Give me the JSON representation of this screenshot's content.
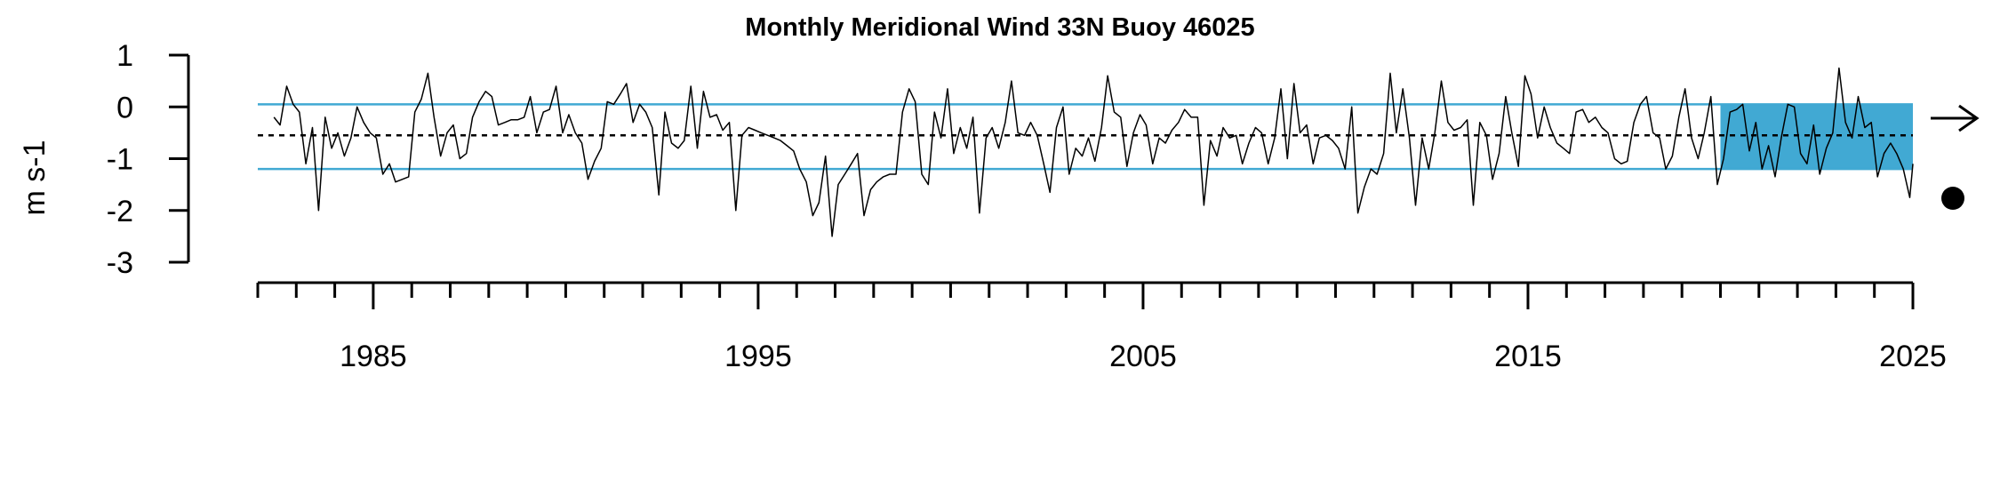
{
  "chart_data": {
    "type": "line",
    "title": "Monthly Meridional Wind 33N Buoy 46025",
    "ylabel": "m s-1",
    "xlabel": "",
    "ylim": [
      -3,
      1
    ],
    "xlim": [
      1982,
      2025
    ],
    "y_ticks": [
      1,
      0,
      -1,
      -2,
      -3
    ],
    "y_tick_labels": [
      "1",
      "0",
      "-1",
      "-2",
      "-3"
    ],
    "x_major_ticks": [
      1985,
      1995,
      2005,
      2015,
      2025
    ],
    "x_tick_labels": [
      "1985",
      "1995",
      "2005",
      "2015",
      "2025"
    ],
    "x_minor_tick_start": 1982,
    "x_minor_tick_end": 2025,
    "mean": -0.55,
    "upper_band": 0.05,
    "lower_band": -1.2,
    "highlight_period": [
      2020,
      2025
    ],
    "trend_indicator": "right-arrow-icon",
    "recent_mean_indicator": "filled-circle-icon",
    "colors": {
      "band": "#41a9d3",
      "line": "#000000",
      "highlight": "#41a9d3"
    },
    "series": [
      {
        "values": [
          [
            1982.42,
            -0.2
          ],
          [
            1982.58,
            -0.35
          ],
          [
            1982.75,
            0.4
          ],
          [
            1982.92,
            0.05
          ],
          [
            1983.08,
            -0.1
          ],
          [
            1983.25,
            -1.1
          ],
          [
            1983.42,
            -0.4
          ],
          [
            1983.58,
            -2.0
          ],
          [
            1983.75,
            -0.2
          ],
          [
            1983.92,
            -0.8
          ],
          [
            1984.08,
            -0.5
          ],
          [
            1984.25,
            -0.95
          ],
          [
            1984.42,
            -0.6
          ],
          [
            1984.58,
            0.0
          ],
          [
            1984.75,
            -0.3
          ],
          [
            1984.92,
            -0.5
          ],
          [
            1985.08,
            -0.6
          ],
          [
            1985.25,
            -1.3
          ],
          [
            1985.42,
            -1.1
          ],
          [
            1985.58,
            -1.45
          ],
          [
            1985.75,
            -1.4
          ],
          [
            1985.92,
            -1.35
          ],
          [
            1986.08,
            -0.1
          ],
          [
            1986.25,
            0.15
          ],
          [
            1986.42,
            0.65
          ],
          [
            1986.58,
            -0.2
          ],
          [
            1986.75,
            -0.95
          ],
          [
            1986.92,
            -0.5
          ],
          [
            1987.08,
            -0.35
          ],
          [
            1987.25,
            -1.0
          ],
          [
            1987.42,
            -0.9
          ],
          [
            1987.58,
            -0.2
          ],
          [
            1987.75,
            0.1
          ],
          [
            1987.92,
            0.3
          ],
          [
            1988.08,
            0.2
          ],
          [
            1988.25,
            -0.35
          ],
          [
            1988.42,
            -0.3
          ],
          [
            1988.58,
            -0.25
          ],
          [
            1988.75,
            -0.25
          ],
          [
            1988.92,
            -0.2
          ],
          [
            1989.08,
            0.2
          ],
          [
            1989.25,
            -0.5
          ],
          [
            1989.42,
            -0.1
          ],
          [
            1989.58,
            -0.05
          ],
          [
            1989.75,
            0.4
          ],
          [
            1989.92,
            -0.5
          ],
          [
            1990.08,
            -0.15
          ],
          [
            1990.25,
            -0.5
          ],
          [
            1990.42,
            -0.7
          ],
          [
            1990.58,
            -1.4
          ],
          [
            1990.75,
            -1.05
          ],
          [
            1990.92,
            -0.8
          ],
          [
            1991.08,
            0.1
          ],
          [
            1991.25,
            0.05
          ],
          [
            1991.42,
            0.25
          ],
          [
            1991.58,
            0.45
          ],
          [
            1991.75,
            -0.3
          ],
          [
            1991.92,
            0.05
          ],
          [
            1992.08,
            -0.1
          ],
          [
            1992.25,
            -0.4
          ],
          [
            1992.42,
            -1.7
          ],
          [
            1992.58,
            -0.1
          ],
          [
            1992.75,
            -0.7
          ],
          [
            1992.92,
            -0.8
          ],
          [
            1993.08,
            -0.65
          ],
          [
            1993.25,
            0.4
          ],
          [
            1993.42,
            -0.8
          ],
          [
            1993.58,
            0.3
          ],
          [
            1993.75,
            -0.2
          ],
          [
            1993.92,
            -0.15
          ],
          [
            1994.08,
            -0.45
          ],
          [
            1994.25,
            -0.3
          ],
          [
            1994.42,
            -2.0
          ],
          [
            1994.58,
            -0.55
          ],
          [
            1994.75,
            -0.4
          ],
          [
            1994.92,
            -0.45
          ],
          [
            1995.08,
            -0.5
          ],
          [
            1995.25,
            -0.55
          ],
          [
            1995.42,
            -0.6
          ],
          [
            1995.58,
            -0.65
          ],
          [
            1995.75,
            -0.75
          ],
          [
            1995.92,
            -0.85
          ],
          [
            1996.08,
            -1.2
          ],
          [
            1996.25,
            -1.45
          ],
          [
            1996.42,
            -2.1
          ],
          [
            1996.58,
            -1.85
          ],
          [
            1996.75,
            -0.95
          ],
          [
            1996.92,
            -2.5
          ],
          [
            1997.08,
            -1.5
          ],
          [
            1997.25,
            -1.3
          ],
          [
            1997.42,
            -1.1
          ],
          [
            1997.58,
            -0.9
          ],
          [
            1997.75,
            -2.1
          ],
          [
            1997.92,
            -1.6
          ],
          [
            1998.08,
            -1.45
          ],
          [
            1998.25,
            -1.35
          ],
          [
            1998.42,
            -1.3
          ],
          [
            1998.58,
            -1.3
          ],
          [
            1998.75,
            -0.1
          ],
          [
            1998.92,
            0.35
          ],
          [
            1999.08,
            0.1
          ],
          [
            1999.25,
            -1.3
          ],
          [
            1999.42,
            -1.5
          ],
          [
            1999.58,
            -0.1
          ],
          [
            1999.75,
            -0.6
          ],
          [
            1999.92,
            0.35
          ],
          [
            2000.08,
            -0.9
          ],
          [
            2000.25,
            -0.4
          ],
          [
            2000.42,
            -0.8
          ],
          [
            2000.58,
            -0.2
          ],
          [
            2000.75,
            -2.05
          ],
          [
            2000.92,
            -0.6
          ],
          [
            2001.08,
            -0.4
          ],
          [
            2001.25,
            -0.8
          ],
          [
            2001.42,
            -0.3
          ],
          [
            2001.58,
            0.5
          ],
          [
            2001.75,
            -0.5
          ],
          [
            2001.92,
            -0.55
          ],
          [
            2002.08,
            -0.3
          ],
          [
            2002.25,
            -0.55
          ],
          [
            2002.42,
            -1.1
          ],
          [
            2002.58,
            -1.65
          ],
          [
            2002.75,
            -0.4
          ],
          [
            2002.92,
            0.0
          ],
          [
            2003.08,
            -1.3
          ],
          [
            2003.25,
            -0.8
          ],
          [
            2003.42,
            -0.95
          ],
          [
            2003.58,
            -0.6
          ],
          [
            2003.75,
            -1.05
          ],
          [
            2003.92,
            -0.4
          ],
          [
            2004.08,
            0.6
          ],
          [
            2004.25,
            -0.1
          ],
          [
            2004.42,
            -0.2
          ],
          [
            2004.58,
            -1.15
          ],
          [
            2004.75,
            -0.5
          ],
          [
            2004.92,
            -0.15
          ],
          [
            2005.08,
            -0.35
          ],
          [
            2005.25,
            -1.1
          ],
          [
            2005.42,
            -0.6
          ],
          [
            2005.58,
            -0.7
          ],
          [
            2005.75,
            -0.45
          ],
          [
            2005.92,
            -0.3
          ],
          [
            2006.08,
            -0.05
          ],
          [
            2006.25,
            -0.2
          ],
          [
            2006.42,
            -0.2
          ],
          [
            2006.58,
            -1.9
          ],
          [
            2006.75,
            -0.65
          ],
          [
            2006.92,
            -0.95
          ],
          [
            2007.08,
            -0.4
          ],
          [
            2007.25,
            -0.6
          ],
          [
            2007.42,
            -0.55
          ],
          [
            2007.58,
            -1.1
          ],
          [
            2007.75,
            -0.7
          ],
          [
            2007.92,
            -0.4
          ],
          [
            2008.08,
            -0.5
          ],
          [
            2008.25,
            -1.1
          ],
          [
            2008.42,
            -0.6
          ],
          [
            2008.58,
            0.35
          ],
          [
            2008.75,
            -1.0
          ],
          [
            2008.92,
            0.45
          ],
          [
            2009.08,
            -0.5
          ],
          [
            2009.25,
            -0.35
          ],
          [
            2009.42,
            -1.1
          ],
          [
            2009.58,
            -0.6
          ],
          [
            2009.75,
            -0.55
          ],
          [
            2009.92,
            -0.65
          ],
          [
            2010.08,
            -0.8
          ],
          [
            2010.25,
            -1.2
          ],
          [
            2010.42,
            0.0
          ],
          [
            2010.58,
            -2.05
          ],
          [
            2010.75,
            -1.55
          ],
          [
            2010.92,
            -1.2
          ],
          [
            2011.08,
            -1.3
          ],
          [
            2011.25,
            -0.9
          ],
          [
            2011.42,
            0.65
          ],
          [
            2011.58,
            -0.5
          ],
          [
            2011.75,
            0.35
          ],
          [
            2011.92,
            -0.6
          ],
          [
            2012.08,
            -1.9
          ],
          [
            2012.25,
            -0.6
          ],
          [
            2012.42,
            -1.2
          ],
          [
            2012.58,
            -0.5
          ],
          [
            2012.75,
            0.5
          ],
          [
            2012.92,
            -0.3
          ],
          [
            2013.08,
            -0.45
          ],
          [
            2013.25,
            -0.4
          ],
          [
            2013.42,
            -0.25
          ],
          [
            2013.58,
            -1.9
          ],
          [
            2013.75,
            -0.3
          ],
          [
            2013.92,
            -0.55
          ],
          [
            2014.08,
            -1.4
          ],
          [
            2014.25,
            -0.9
          ],
          [
            2014.42,
            0.2
          ],
          [
            2014.58,
            -0.5
          ],
          [
            2014.75,
            -1.15
          ],
          [
            2014.92,
            0.6
          ],
          [
            2015.08,
            0.25
          ],
          [
            2015.25,
            -0.6
          ],
          [
            2015.42,
            0.0
          ],
          [
            2015.58,
            -0.4
          ],
          [
            2015.75,
            -0.7
          ],
          [
            2015.92,
            -0.8
          ],
          [
            2016.08,
            -0.9
          ],
          [
            2016.25,
            -0.1
          ],
          [
            2016.42,
            -0.05
          ],
          [
            2016.58,
            -0.3
          ],
          [
            2016.75,
            -0.2
          ],
          [
            2016.92,
            -0.4
          ],
          [
            2017.08,
            -0.5
          ],
          [
            2017.25,
            -1.0
          ],
          [
            2017.42,
            -1.1
          ],
          [
            2017.58,
            -1.05
          ],
          [
            2017.75,
            -0.3
          ],
          [
            2017.92,
            0.05
          ],
          [
            2018.08,
            0.2
          ],
          [
            2018.25,
            -0.5
          ],
          [
            2018.42,
            -0.6
          ],
          [
            2018.58,
            -1.2
          ],
          [
            2018.75,
            -0.95
          ],
          [
            2018.92,
            -0.2
          ],
          [
            2019.08,
            0.35
          ],
          [
            2019.25,
            -0.6
          ],
          [
            2019.42,
            -1.0
          ],
          [
            2019.58,
            -0.5
          ],
          [
            2019.75,
            0.2
          ],
          [
            2019.92,
            -1.5
          ],
          [
            2020.08,
            -1.0
          ],
          [
            2020.25,
            -0.1
          ],
          [
            2020.42,
            -0.05
          ],
          [
            2020.58,
            0.05
          ],
          [
            2020.75,
            -0.85
          ],
          [
            2020.92,
            -0.3
          ],
          [
            2021.08,
            -1.2
          ],
          [
            2021.25,
            -0.75
          ],
          [
            2021.42,
            -1.35
          ],
          [
            2021.58,
            -0.6
          ],
          [
            2021.75,
            0.05
          ],
          [
            2021.92,
            0.0
          ],
          [
            2022.08,
            -0.9
          ],
          [
            2022.25,
            -1.1
          ],
          [
            2022.42,
            -0.35
          ],
          [
            2022.58,
            -1.3
          ],
          [
            2022.75,
            -0.8
          ],
          [
            2022.92,
            -0.5
          ],
          [
            2023.08,
            0.75
          ],
          [
            2023.25,
            -0.3
          ],
          [
            2023.42,
            -0.6
          ],
          [
            2023.58,
            0.2
          ],
          [
            2023.75,
            -0.4
          ],
          [
            2023.92,
            -0.3
          ],
          [
            2024.08,
            -1.35
          ],
          [
            2024.25,
            -0.9
          ],
          [
            2024.42,
            -0.7
          ],
          [
            2024.58,
            -0.9
          ],
          [
            2024.75,
            -1.2
          ],
          [
            2024.92,
            -1.75
          ],
          [
            2025.0,
            -1.1
          ]
        ]
      }
    ]
  }
}
